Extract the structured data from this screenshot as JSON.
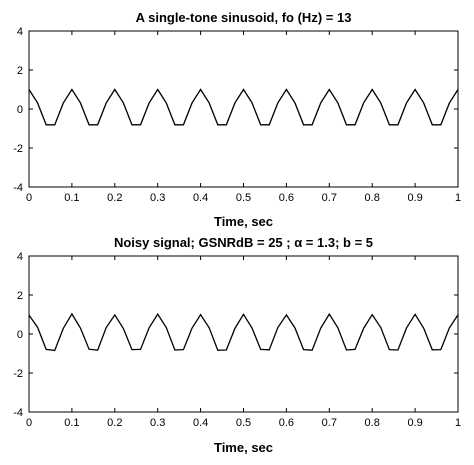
{
  "chart_data": [
    {
      "type": "line",
      "title": "A single-tone sinusoid, fo (Hz) = 13",
      "xlabel": "Time, sec",
      "ylabel": "",
      "xlim": [
        0,
        1
      ],
      "ylim": [
        -4,
        4
      ],
      "xticks": [
        0,
        0.1,
        0.2,
        0.3,
        0.4,
        0.5,
        0.6,
        0.7,
        0.8,
        0.9,
        1
      ],
      "xtick_labels": [
        "0",
        "0.1",
        "0.2",
        "0.3",
        "0.4",
        "0.5",
        "0.6",
        "0.7",
        "0.8",
        "0.9",
        "1"
      ],
      "yticks": [
        -4,
        -2,
        0,
        2,
        4
      ],
      "ytick_labels": [
        "-4",
        "-2",
        "0",
        "2",
        "4"
      ],
      "grid": false,
      "series": [
        {
          "color": "#000000",
          "x": [
            0,
            0.02,
            0.04,
            0.06,
            0.08,
            0.1,
            0.12,
            0.14,
            0.16,
            0.18,
            0.2,
            0.22,
            0.24,
            0.26,
            0.28,
            0.3,
            0.32,
            0.34,
            0.36,
            0.38,
            0.4,
            0.42,
            0.44,
            0.46,
            0.48,
            0.5,
            0.52,
            0.54,
            0.56,
            0.58,
            0.6,
            0.62,
            0.64,
            0.66,
            0.68,
            0.7,
            0.72,
            0.74,
            0.76,
            0.78,
            0.8,
            0.82,
            0.84,
            0.86,
            0.88,
            0.9,
            0.92,
            0.94,
            0.96,
            0.98,
            1
          ],
          "y": [
            1,
            0.31,
            -0.81,
            -0.81,
            0.31,
            1,
            0.31,
            -0.81,
            -0.81,
            0.31,
            1,
            0.31,
            -0.81,
            -0.81,
            0.31,
            1,
            0.31,
            -0.81,
            -0.81,
            0.31,
            1,
            0.31,
            -0.81,
            -0.81,
            0.31,
            1,
            0.31,
            -0.81,
            -0.81,
            0.31,
            1,
            0.31,
            -0.81,
            -0.81,
            0.31,
            1,
            0.31,
            -0.81,
            -0.81,
            0.31,
            1,
            0.31,
            -0.81,
            -0.81,
            0.31,
            1,
            0.31,
            -0.81,
            -0.81,
            0.31,
            1
          ]
        }
      ]
    },
    {
      "type": "line",
      "title": "Noisy signal; GSNRdB = 25 ;  α = 1.3; b = 5",
      "xlabel": "Time, sec",
      "ylabel": "",
      "xlim": [
        0,
        1
      ],
      "ylim": [
        -4,
        4
      ],
      "xticks": [
        0,
        0.1,
        0.2,
        0.3,
        0.4,
        0.5,
        0.6,
        0.7,
        0.8,
        0.9,
        1
      ],
      "xtick_labels": [
        "0",
        "0.1",
        "0.2",
        "0.3",
        "0.4",
        "0.5",
        "0.6",
        "0.7",
        "0.8",
        "0.9",
        "1"
      ],
      "yticks": [
        -4,
        -2,
        0,
        2,
        4
      ],
      "ytick_labels": [
        "-4",
        "-2",
        "0",
        "2",
        "4"
      ],
      "grid": false,
      "series": [
        {
          "color": "#000000",
          "x": [
            0,
            0.02,
            0.04,
            0.06,
            0.08,
            0.1,
            0.12,
            0.14,
            0.16,
            0.18,
            0.2,
            0.22,
            0.24,
            0.26,
            0.28,
            0.3,
            0.32,
            0.34,
            0.36,
            0.38,
            0.4,
            0.42,
            0.44,
            0.46,
            0.48,
            0.5,
            0.52,
            0.54,
            0.56,
            0.58,
            0.6,
            0.62,
            0.64,
            0.66,
            0.68,
            0.7,
            0.72,
            0.74,
            0.76,
            0.78,
            0.8,
            0.82,
            0.84,
            0.86,
            0.88,
            0.9,
            0.92,
            0.94,
            0.96,
            0.98,
            1
          ],
          "y": [
            0.97,
            0.34,
            -0.79,
            -0.84,
            0.29,
            1.03,
            0.3,
            -0.78,
            -0.83,
            0.33,
            0.98,
            0.28,
            -0.8,
            -0.79,
            0.32,
            1.02,
            0.33,
            -0.82,
            -0.8,
            0.3,
            0.99,
            0.32,
            -0.83,
            -0.82,
            0.29,
            1.01,
            0.3,
            -0.79,
            -0.81,
            0.33,
            0.98,
            0.31,
            -0.8,
            -0.83,
            0.3,
            1.02,
            0.32,
            -0.82,
            -0.79,
            0.29,
            0.99,
            0.33,
            -0.8,
            -0.82,
            0.31,
            1.01,
            0.3,
            -0.81,
            -0.8,
            0.32,
            0.98
          ]
        }
      ]
    }
  ]
}
